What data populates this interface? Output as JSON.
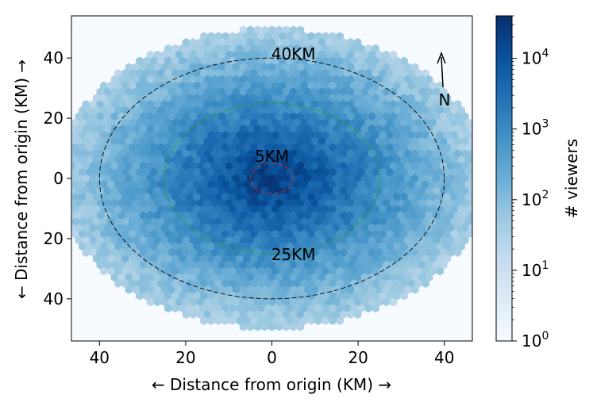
{
  "chart_data": {
    "type": "heatmap",
    "subtype": "hexbin",
    "xlabel": "← Distance from origin (KM) →",
    "ylabel": "← Distance from origin (KM) →",
    "xlim": [
      -46.5,
      46.5
    ],
    "ylim": [
      -54,
      54
    ],
    "x_ticks": [
      -40,
      -20,
      0,
      20,
      40
    ],
    "x_tick_labels": [
      "40",
      "20",
      "0",
      "20",
      "40"
    ],
    "y_ticks": [
      40,
      20,
      0,
      -20,
      -40
    ],
    "y_tick_labels": [
      "40",
      "20",
      "0",
      "20",
      "40"
    ],
    "colorbar": {
      "label": "# viewers",
      "scale": "log",
      "range": [
        1,
        40000
      ],
      "ticks": [
        1,
        10,
        100,
        1000,
        10000
      ],
      "tick_labels": [
        "10^0",
        "10^1",
        "10^2",
        "10^3",
        "10^4"
      ],
      "colormap": "Blues"
    },
    "density": {
      "center": [
        0,
        0
      ],
      "peak_count": 30000,
      "e_folding_radius_km": 7.3,
      "extent_km": 50
    },
    "circles": [
      {
        "label": "5KM",
        "radius_km": 5,
        "color": "#d62728"
      },
      {
        "label": "25KM",
        "radius_km": 25,
        "color": "#2ca02c"
      },
      {
        "label": "40KM",
        "radius_km": 40,
        "color": "#000000"
      }
    ],
    "compass": {
      "label": "N",
      "direction": "up"
    },
    "grid": false
  }
}
